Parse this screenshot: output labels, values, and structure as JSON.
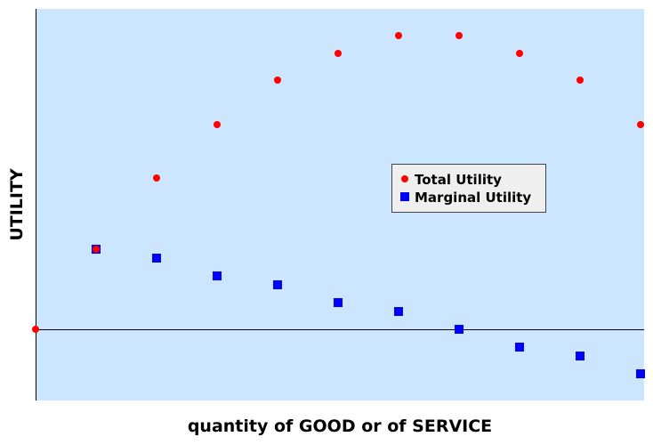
{
  "chart_data": {
    "type": "scatter",
    "title": "",
    "xlabel": "quantity of GOOD or of SERVICE",
    "ylabel": "UTILITY",
    "xlim": [
      0,
      10
    ],
    "ylim": [
      -8,
      36
    ],
    "grid": false,
    "legend_position": "center-right",
    "background_color": "#cce6ff",
    "series": [
      {
        "name": "Total Utility",
        "marker": "circle",
        "color": "#ff0000",
        "x": [
          0,
          1,
          2,
          3,
          4,
          5,
          6,
          7,
          8,
          9,
          10
        ],
        "y": [
          0,
          9,
          17,
          23,
          28,
          31,
          33,
          33,
          31,
          28,
          23
        ]
      },
      {
        "name": "Marginal Utility",
        "marker": "square",
        "color": "#0000ff",
        "x": [
          1,
          2,
          3,
          4,
          5,
          6,
          7,
          8,
          9,
          10
        ],
        "y": [
          9,
          8,
          6,
          5,
          3,
          2,
          0,
          -2,
          -3,
          -5
        ]
      }
    ]
  }
}
